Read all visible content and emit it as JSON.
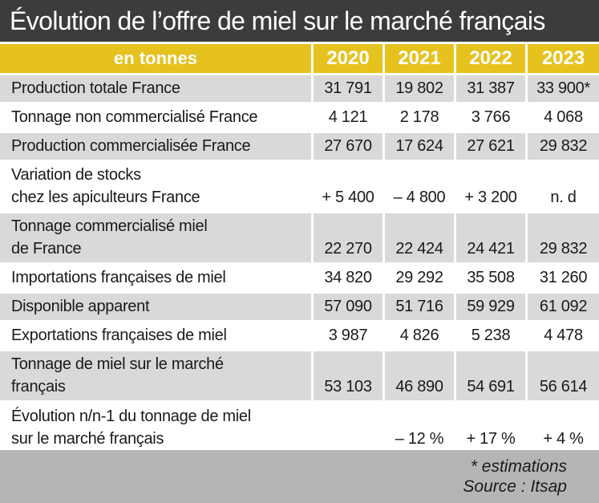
{
  "title": "Évolution de l’offre de miel sur le marché français",
  "header": {
    "unit_label": "en tonnes",
    "years": [
      "2020",
      "2021",
      "2022",
      "2023"
    ]
  },
  "rows": [
    {
      "label_lines": [
        "Production totale France"
      ],
      "values": [
        "31 791",
        "19 802",
        "31 387",
        "33 900*"
      ]
    },
    {
      "label_lines": [
        "Tonnage non commercialisé France"
      ],
      "values": [
        "4 121",
        "2 178",
        "3 766",
        "4 068"
      ]
    },
    {
      "label_lines": [
        "Production commercialisée France"
      ],
      "values": [
        "27 670",
        "17 624",
        "27 621",
        "29 832"
      ]
    },
    {
      "label_lines": [
        "Variation de stocks",
        "chez les apiculteurs France"
      ],
      "values": [
        "+ 5 400",
        "– 4 800",
        "+ 3 200",
        "n. d"
      ]
    },
    {
      "label_lines": [
        "Tonnage commercialisé miel",
        "de France"
      ],
      "values": [
        "22 270",
        "22 424",
        "24 421",
        "29 832"
      ]
    },
    {
      "label_lines": [
        "Importations françaises de miel"
      ],
      "values": [
        "34 820",
        "29 292",
        "35 508",
        "31 260"
      ]
    },
    {
      "label_lines": [
        "Disponible apparent"
      ],
      "values": [
        "57 090",
        "51 716",
        "59 929",
        "61 092"
      ]
    },
    {
      "label_lines": [
        "Exportations françaises de miel"
      ],
      "values": [
        "3 987",
        "4 826",
        "5 238",
        "4 478"
      ]
    },
    {
      "label_lines": [
        "Tonnage de miel sur le marché",
        "français"
      ],
      "values": [
        "53 103",
        "46 890",
        "54 691",
        "56 614"
      ]
    },
    {
      "label_lines": [
        "Évolution n/n-1 du tonnage de miel",
        "sur le marché français"
      ],
      "values": [
        "",
        "– 12 %",
        "+ 17 %",
        "+ 4 %"
      ]
    }
  ],
  "footer": {
    "note": "* estimations",
    "source": "Source : Itsap"
  },
  "colors": {
    "title_background": "#3c3c3c",
    "header_yellow": "#e6c21f",
    "row_grey": "#d9d9d9",
    "footer_grey": "#b5b5b5"
  }
}
